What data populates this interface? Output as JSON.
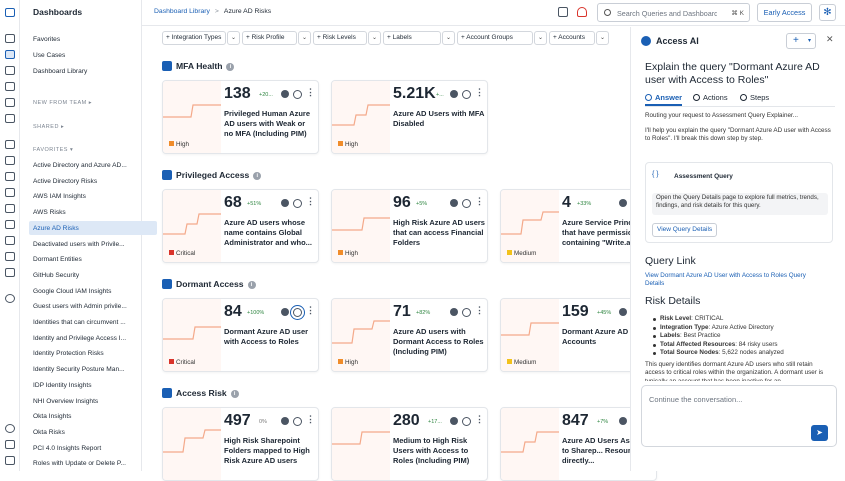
{
  "sidebar": {
    "title": "Dashboards",
    "top_items": [
      "Favorites",
      "Use Cases",
      "Dashboard Library"
    ],
    "new_from_team": "NEW FROM TEAM",
    "shared": "SHARED",
    "favorites_label": "FAVORITES",
    "items": [
      "Active Directory and Azure AD...",
      "Active Directory Risks",
      "AWS IAM Insights",
      "AWS Risks",
      "Azure AD Risks",
      "Deactivated users with Privile...",
      "Dormant Entities",
      "GitHub Security",
      "Google Cloud IAM Insights",
      "Guest users with Admin privile...",
      "Identities that can circumvent ...",
      "Identity and Privilege Access I...",
      "Identity Protection Risks",
      "Identity Security Posture Man...",
      "IDP Identity Insights",
      "NHI Overview Insights",
      "Okta Insights",
      "Okta Risks",
      "PCI 4.0 Insights Report",
      "Roles with Update or Delete P..."
    ],
    "selected_index": 4
  },
  "topbar": {
    "crumb_root": "Dashboard Library",
    "crumb_sep": ">",
    "crumb_current": "Azure AD Risks",
    "search_placeholder": "Search Queries and Dashboards",
    "search_shortcut": "⌘ K",
    "early_access": "Early Access"
  },
  "filters": [
    "Integration Types",
    "Risk Profile",
    "Risk Levels",
    "Labels",
    "Account Groups",
    "Accounts"
  ],
  "sections": [
    {
      "title": "MFA Health",
      "cards": [
        {
          "value": "138",
          "delta": "+20...",
          "name": "Privileged Human Azure AD users with Weak or no MFA (Including PIM)",
          "severity": "High"
        },
        {
          "value": "5.21K",
          "delta": "+...",
          "name": "Azure AD Users with MFA Disabled",
          "severity": "High"
        }
      ]
    },
    {
      "title": "Privileged Access",
      "cards": [
        {
          "value": "68",
          "delta": "+51%",
          "name": "Azure AD users whose name contains Global Administrator and who...",
          "severity": "Critical"
        },
        {
          "value": "96",
          "delta": "+5%",
          "name": "High Risk Azure AD users that can access Financial Folders",
          "severity": "High"
        },
        {
          "value": "4",
          "delta": "+33%",
          "name": "Azure Service Principals that have permissions containing \"Write.a...",
          "severity": "Medium"
        }
      ]
    },
    {
      "title": "Dormant Access",
      "cards": [
        {
          "value": "84",
          "delta": "+100%",
          "name": "Dormant Azure AD user with Access to Roles",
          "severity": "Critical"
        },
        {
          "value": "71",
          "delta": "+82%",
          "name": "Azure AD users with Dormant Access to Roles (Including PIM)",
          "severity": "High"
        },
        {
          "value": "159",
          "delta": "+45%",
          "name": "Dormant Azure AD Accounts",
          "severity": "Medium"
        }
      ]
    },
    {
      "title": "Access Risk",
      "cards": [
        {
          "value": "497",
          "delta": "0%",
          "name": "High Risk Sharepoint Folders mapped to High Risk Azure AD users",
          "severity": ""
        },
        {
          "value": "280",
          "delta": "+17...",
          "name": "Medium to High Risk Users with Access to Roles (Including PIM)",
          "severity": ""
        },
        {
          "value": "847",
          "delta": "+7%",
          "name": "Azure AD Users Assigned to Sharep... Resources directly...",
          "severity": ""
        }
      ]
    }
  ],
  "colors": {
    "accent": "#1a5fb4",
    "critical": "#d9342b",
    "high": "#f08c2a",
    "medium": "#f2c21b",
    "spark": "#f4a98a"
  },
  "ai": {
    "title": "Access AI",
    "question": "Explain the query \"Dormant Azure AD user with Access to Roles\"",
    "tabs": [
      "Answer",
      "Actions",
      "Steps"
    ],
    "routing": "Routing your request to Assessment Query Explainer...",
    "intro": "I'll help you explain the query \"Dormant Azure AD user with Access to Roles\". I'll break this down step by step.",
    "box_title": "Assessment Query",
    "box_body": "Open the Query Details page to explore full metrics, trends, findings, and risk details for this query.",
    "box_button": "View Query Details",
    "query_link_heading": "Query Link",
    "query_link": "View Dormant Azure AD User with Access to Roles Query Details",
    "risk_heading": "Risk Details",
    "risk_items": [
      {
        "k": "Risk Level",
        "v": ": CRITICAL"
      },
      {
        "k": "Integration Type",
        "v": ": Azure Active Directory"
      },
      {
        "k": "Labels",
        "v": ": Best Practice"
      },
      {
        "k": "Total Affected Resources",
        "v": ": 84 risky users"
      },
      {
        "k": "Total Source Nodes",
        "v": ": 5,622 nodes analyzed"
      }
    ],
    "para": "This query identifies dormant Azure AD users who still retain access to critical roles within the organization. A dormant user is typically an account that has been inactive for an",
    "input_placeholder": "Continue the conversation..."
  }
}
